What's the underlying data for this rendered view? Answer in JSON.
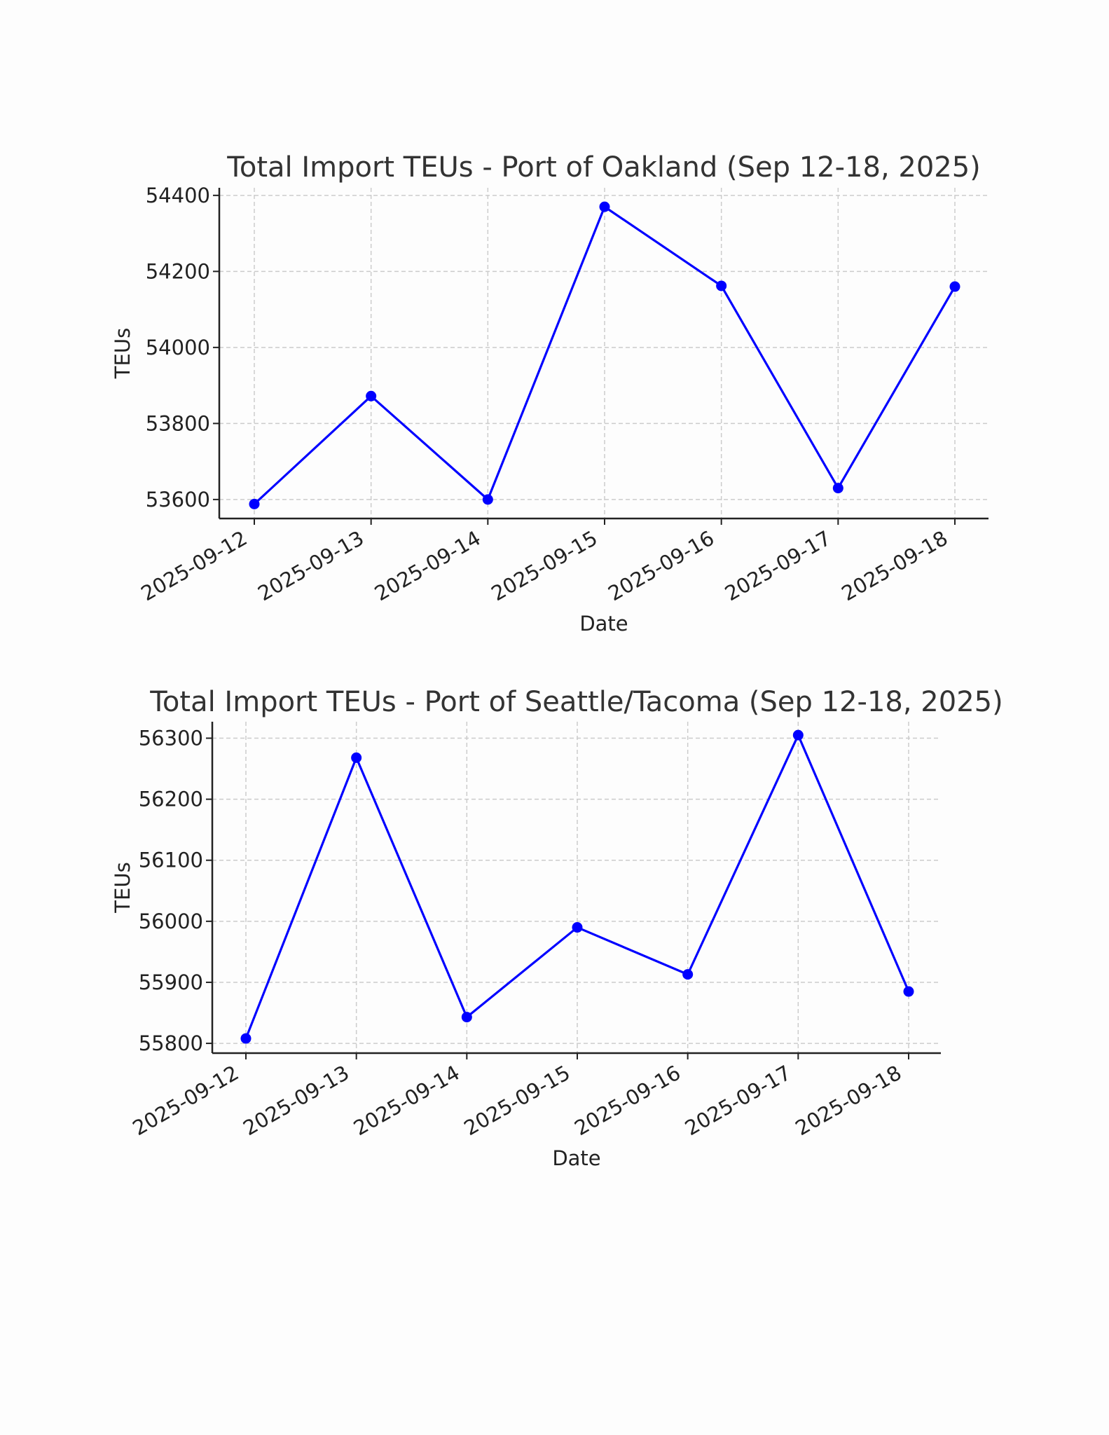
{
  "chart_data": [
    {
      "type": "line",
      "title": "Total Import TEUs - Port of Oakland (Sep 12-18, 2025)",
      "xlabel": "Date",
      "ylabel": "TEUs",
      "categories": [
        "2025-09-12",
        "2025-09-13",
        "2025-09-14",
        "2025-09-15",
        "2025-09-16",
        "2025-09-17",
        "2025-09-18"
      ],
      "series": [
        {
          "values": [
            53588,
            53872,
            53600,
            54370,
            54162,
            53630,
            54160
          ],
          "color": "#0000ff"
        }
      ],
      "yticks": [
        53600,
        53800,
        54000,
        54200,
        54400
      ],
      "ylim": [
        53550,
        54420
      ],
      "grid": true,
      "marker": "circle"
    },
    {
      "type": "line",
      "title": "Total Import TEUs - Port of Seattle/Tacoma (Sep 12-18, 2025)",
      "xlabel": "Date",
      "ylabel": "TEUs",
      "categories": [
        "2025-09-12",
        "2025-09-13",
        "2025-09-14",
        "2025-09-15",
        "2025-09-16",
        "2025-09-17",
        "2025-09-18"
      ],
      "series": [
        {
          "values": [
            55808,
            56268,
            55843,
            55990,
            55913,
            56305,
            55885
          ],
          "color": "#0000ff"
        }
      ],
      "yticks": [
        55800,
        55900,
        56000,
        56100,
        56200,
        56300
      ],
      "ylim": [
        55784,
        56327
      ],
      "grid": true,
      "marker": "circle"
    }
  ]
}
